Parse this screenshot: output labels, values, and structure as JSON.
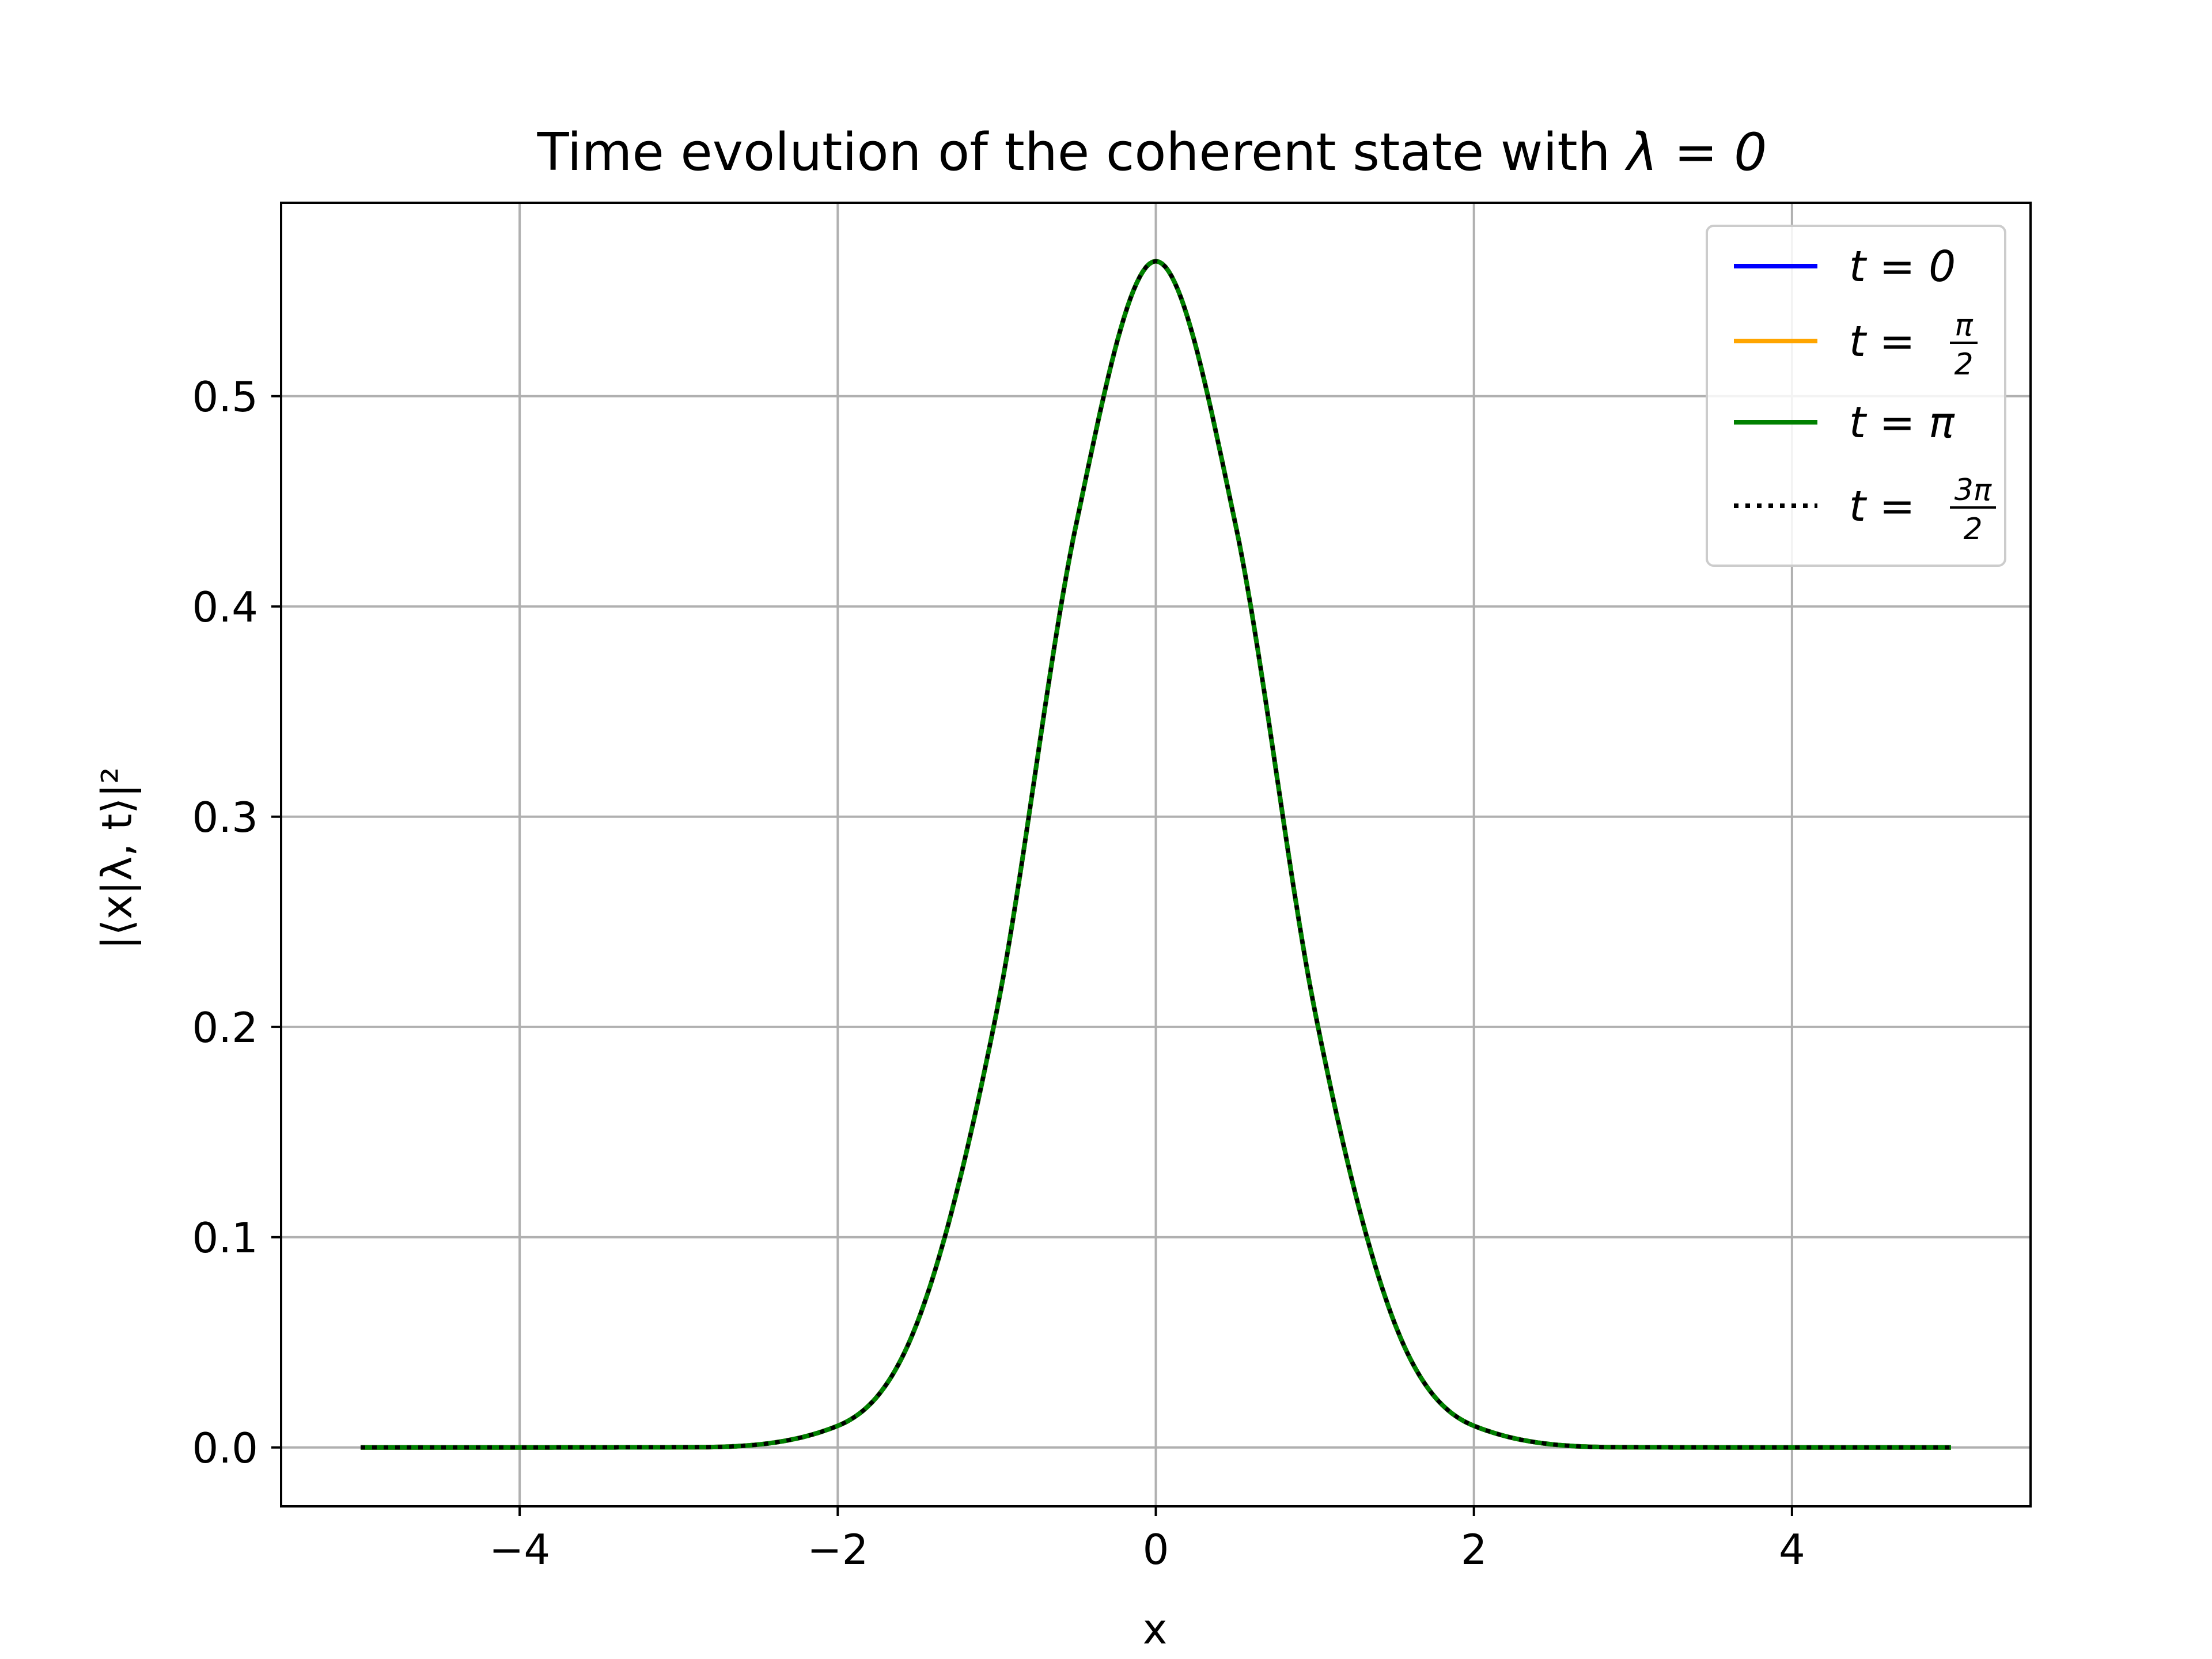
{
  "chart_data": {
    "type": "line",
    "title_prefix": "Time evolution of the coherent state with ",
    "title_math": "λ = 0",
    "xlabel": "x",
    "ylabel": "|⟨x|λ, t⟩|²",
    "xlim": [
      -5.5,
      5.5
    ],
    "ylim": [
      -0.028,
      0.592
    ],
    "xticks": [
      -4,
      -2,
      0,
      2,
      4
    ],
    "xtick_labels": [
      "−4",
      "−2",
      "0",
      "2",
      "4"
    ],
    "yticks": [
      0.0,
      0.1,
      0.2,
      0.3,
      0.4,
      0.5
    ],
    "ytick_labels": [
      "0.0",
      "0.1",
      "0.2",
      "0.3",
      "0.4",
      "0.5"
    ],
    "grid": true,
    "legend_position": "top-right",
    "x_range": [
      -5,
      5
    ],
    "samples": [
      {
        "x": -5,
        "y": 0.0
      },
      {
        "x": -3,
        "y": 0.0001
      },
      {
        "x": -2,
        "y": 0.0103
      },
      {
        "x": -1.5,
        "y": 0.0594
      },
      {
        "x": -1,
        "y": 0.2076
      },
      {
        "x": -0.5,
        "y": 0.4394
      },
      {
        "x": 0,
        "y": 0.5642
      },
      {
        "x": 0.5,
        "y": 0.4394
      },
      {
        "x": 1,
        "y": 0.2076
      },
      {
        "x": 1.5,
        "y": 0.0594
      },
      {
        "x": 2,
        "y": 0.0103
      },
      {
        "x": 3,
        "y": 0.0001
      },
      {
        "x": 5,
        "y": 0.0
      }
    ],
    "series": [
      {
        "name": "t = 0",
        "prefix": "t = ",
        "value": "0",
        "numerator": "",
        "denominator": "",
        "color": "#0000ff",
        "dash": "solid"
      },
      {
        "name": "t = π/2",
        "prefix": "t = ",
        "value": "",
        "numerator": "π",
        "denominator": "2",
        "color": "#ffa500",
        "dash": "solid"
      },
      {
        "name": "t = π",
        "prefix": "t = ",
        "value": "π",
        "numerator": "",
        "denominator": "",
        "color": "#008000",
        "dash": "solid"
      },
      {
        "name": "t = 3π/2",
        "prefix": "t = ",
        "value": "",
        "numerator": "3π",
        "denominator": "2",
        "color": "#000000",
        "dash": "dotted"
      }
    ]
  }
}
